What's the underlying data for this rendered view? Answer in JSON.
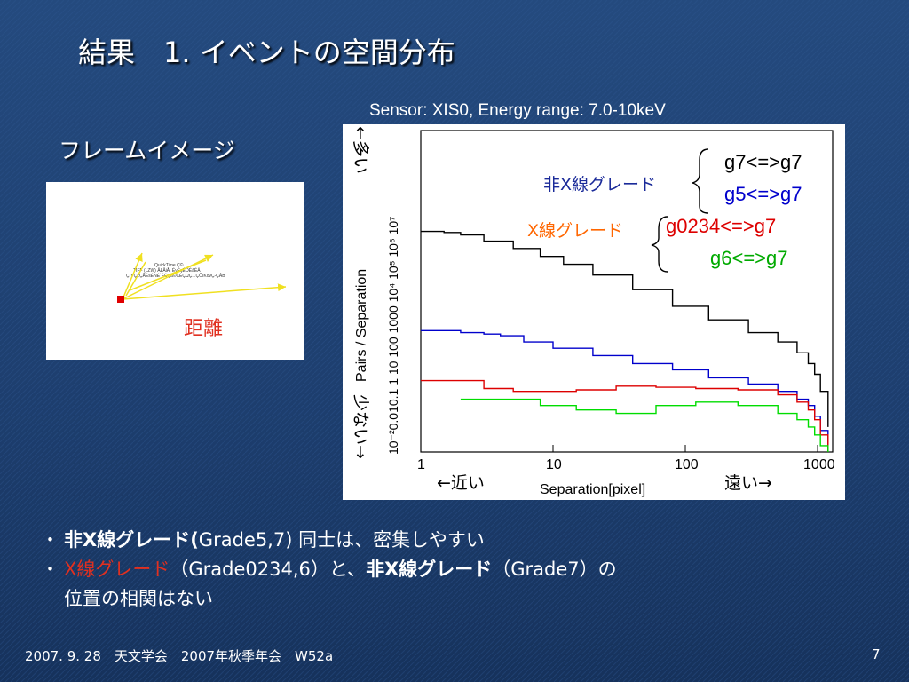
{
  "slide": {
    "title": "結果　1. イベントの空間分布",
    "subtitle": "フレームイメージ",
    "sensor_info": "Sensor: XIS0, Energy range: 7.0-10keV",
    "distance_label": "距離",
    "qt_lines": [
      "QuickTime Ç©",
      "TIFF (LZW) Å£ÅiÅ, ÉvÉçÉOÉâÉÄ",
      "Ç™Ç±ÇÃÉsÉNÉ`ÉÉÇå©ÇÈÇΩÇ...ÇÕïKóvÇ-ÇÅB"
    ],
    "colors": {
      "title_text": "#ffffff",
      "red_text": "#e03020",
      "background": "#1d3e6e"
    }
  },
  "chart_data": {
    "type": "line",
    "xlabel": "Separation[pixel]",
    "ylabel": "Pairs / Separation",
    "x_scale": "log",
    "y_scale": "log",
    "xlim": [
      1,
      1300
    ],
    "ylim": [
      0.01,
      10000000
    ],
    "x_ticks": [
      "1",
      "10",
      "100",
      "1000"
    ],
    "y_ticks": [
      "10⁻²",
      "0.01",
      "0.1",
      "1",
      "10",
      "100",
      "1000",
      "10⁴",
      "10⁵",
      "10⁶",
      "10⁷"
    ],
    "y_ticks_display": "10⁻²0.010.1  1   10 100 1000 10⁴ 10⁵ 10⁶ 10⁷",
    "left_note_top": "←多い",
    "left_note_bottom": "少ない→",
    "near_label": "←近い",
    "far_label": "遠い→",
    "legend_non_x_label": "非X線グレード",
    "legend_x_label": "X線グレード",
    "series": [
      {
        "name": "g7<=>g7",
        "color": "#000000",
        "x": [
          1,
          1.5,
          2,
          3,
          5,
          8,
          12,
          20,
          40,
          80,
          150,
          300,
          500,
          700,
          850,
          950,
          1050,
          1200
        ],
        "y": [
          15000,
          14000,
          12000,
          8000,
          5000,
          3000,
          1800,
          900,
          350,
          120,
          50,
          22,
          12,
          6,
          3,
          1.5,
          0.5,
          0.05
        ]
      },
      {
        "name": "g5<=>g7",
        "color": "#0000cc",
        "x": [
          1,
          1.5,
          2,
          3,
          4,
          6,
          10,
          20,
          40,
          80,
          150,
          300,
          500,
          700,
          850,
          950,
          1050,
          1200
        ],
        "y": [
          25,
          25,
          22,
          20,
          18,
          12,
          8,
          5,
          3,
          2,
          1.2,
          0.8,
          0.5,
          0.3,
          0.2,
          0.1,
          0.04,
          0.01
        ]
      },
      {
        "name": "g0234<=>g7",
        "color": "#dd0000",
        "x": [
          1,
          2,
          3,
          5,
          8,
          15,
          30,
          60,
          120,
          250,
          500,
          700,
          850,
          950,
          1050,
          1200
        ],
        "y": [
          1,
          1,
          0.6,
          0.5,
          0.5,
          0.55,
          0.7,
          0.65,
          0.6,
          0.55,
          0.4,
          0.25,
          0.15,
          0.08,
          0.03,
          0.01
        ]
      },
      {
        "name": "g6<=>g7",
        "color": "#00dd00",
        "x": [
          2,
          3,
          5,
          8,
          15,
          30,
          60,
          120,
          250,
          500,
          700,
          850,
          950,
          1050,
          1200
        ],
        "y": [
          0.3,
          0.3,
          0.3,
          0.2,
          0.15,
          0.12,
          0.2,
          0.25,
          0.2,
          0.12,
          0.08,
          0.05,
          0.03,
          0.015,
          0.01
        ]
      }
    ]
  },
  "bullets": {
    "b1_bold": "非X線グレード(",
    "b1_rest": "Grade5,7) 同士は、密集しやすい",
    "b2_red": "X線グレード",
    "b2_mid1": "（Grade0234,6）と、",
    "b2_bold": "非X線グレード",
    "b2_mid2": "（Grade7）の",
    "b2_line2": "位置の相関はない"
  },
  "footer": {
    "text": "2007. 9. 28　天文学会　2007年秋季年会　W52a",
    "page_number": "7"
  }
}
